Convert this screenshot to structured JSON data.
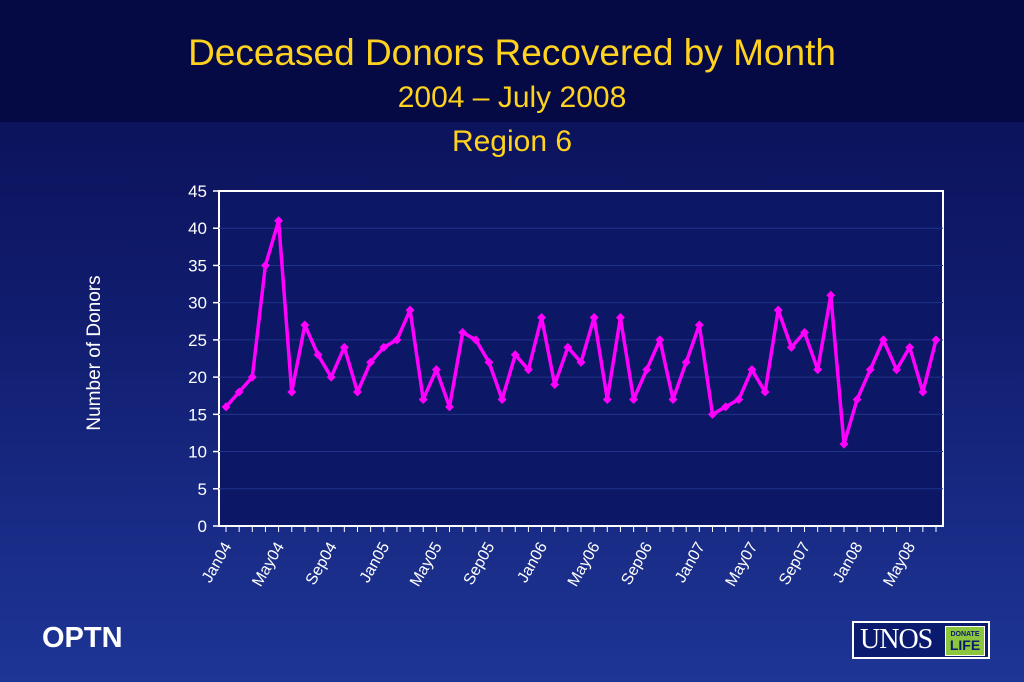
{
  "header": {
    "title": "Deceased Donors Recovered by Month",
    "subtitle1": "2004 – July 2008",
    "subtitle2": "Region 6"
  },
  "footer": {
    "org": "OPTN",
    "logo_text": "UNOS",
    "logo_badge_top": "DONATE",
    "logo_badge_bottom": "LIFE"
  },
  "colors": {
    "line": "#ff00ff",
    "title": "#ffd21f",
    "plot_bg": "#0c1766"
  },
  "chart_data": {
    "type": "line",
    "title": "Deceased Donors Recovered by Month",
    "ylabel": "Number of Donors",
    "xlabel": "",
    "ylim": [
      0,
      45
    ],
    "yticks": [
      0,
      5,
      10,
      15,
      20,
      25,
      30,
      35,
      40,
      45
    ],
    "xtick_labels": [
      "Jan04",
      "May04",
      "Sep04",
      "Jan05",
      "May05",
      "Sep05",
      "Jan06",
      "May06",
      "Sep06",
      "Jan07",
      "May07",
      "Sep07",
      "Jan08",
      "May08"
    ],
    "grid": "horizontal",
    "x": [
      "Jan04",
      "Feb04",
      "Mar04",
      "Apr04",
      "May04",
      "Jun04",
      "Jul04",
      "Aug04",
      "Sep04",
      "Oct04",
      "Nov04",
      "Dec04",
      "Jan05",
      "Feb05",
      "Mar05",
      "Apr05",
      "May05",
      "Jun05",
      "Jul05",
      "Aug05",
      "Sep05",
      "Oct05",
      "Nov05",
      "Dec05",
      "Jan06",
      "Feb06",
      "Mar06",
      "Apr06",
      "May06",
      "Jun06",
      "Jul06",
      "Aug06",
      "Sep06",
      "Oct06",
      "Nov06",
      "Dec06",
      "Jan07",
      "Feb07",
      "Mar07",
      "Apr07",
      "May07",
      "Jun07",
      "Jul07",
      "Aug07",
      "Sep07",
      "Oct07",
      "Nov07",
      "Dec07",
      "Jan08",
      "Feb08",
      "Mar08",
      "Apr08",
      "May08",
      "Jun08",
      "Jul08"
    ],
    "series": [
      {
        "values": [
          16,
          18,
          20,
          35,
          41,
          18,
          27,
          23,
          20,
          24,
          18,
          22,
          24,
          25,
          29,
          17,
          21,
          16,
          26,
          25,
          22,
          17,
          23,
          21,
          28,
          19,
          24,
          22,
          28,
          17,
          28,
          17,
          21,
          25,
          17,
          22,
          27,
          15,
          16,
          17,
          21,
          18,
          29,
          24,
          26,
          21,
          31,
          11,
          17,
          21,
          25,
          21,
          24,
          18,
          25
        ]
      }
    ]
  }
}
